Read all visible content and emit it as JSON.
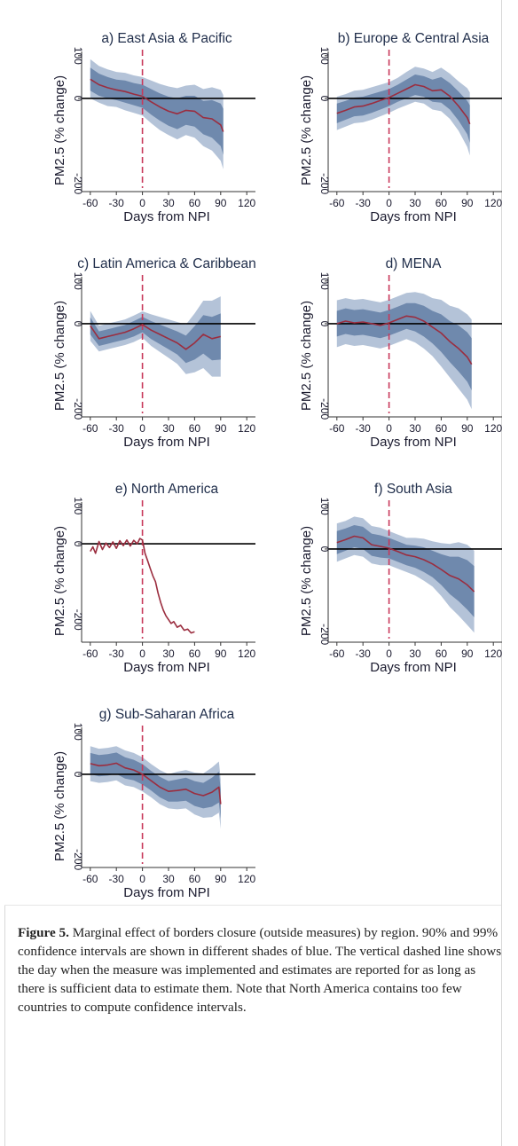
{
  "caption": {
    "label": "Figure 5.",
    "text": " Marginal effect of borders closure (outside measures) by region. 90% and 99% confidence intervals are shown in different shades of blue. The vertical dashed line shows the day when the measure was implemented and estimates are reported for as long as there is sufficient data to estimate them. Note that North America contains too few countries to compute confidence intervals."
  },
  "colors": {
    "ci_outer": "#b4c3d8",
    "ci_inner": "#6f89ad",
    "estimate_line": "#9b2d3f",
    "npi_line": "#c8385a",
    "zero_line": "#000000",
    "axis": "#333333"
  },
  "chart_data": [
    {
      "id": "a",
      "type": "line",
      "title": "a) East Asia & Pacific",
      "xlabel": "Days from NPI",
      "ylabel": "PM2.5 (% change)",
      "xlim": [
        -70,
        130
      ],
      "ylim": [
        -210,
        110
      ],
      "xticks": [
        -60,
        -30,
        0,
        30,
        60,
        90,
        120
      ],
      "yticks": [
        -200,
        0,
        100
      ],
      "grid": false,
      "ci": true,
      "x": [
        -60,
        -50,
        -40,
        -30,
        -20,
        -10,
        0,
        10,
        20,
        30,
        40,
        50,
        60,
        70,
        80,
        90,
        93
      ],
      "y": [
        45,
        32,
        25,
        20,
        16,
        10,
        5,
        -8,
        -20,
        -30,
        -36,
        -28,
        -30,
        -45,
        -48,
        -62,
        -78
      ],
      "ci90_lo": [
        18,
        6,
        0,
        -4,
        -10,
        -16,
        -22,
        -38,
        -52,
        -64,
        -72,
        -62,
        -66,
        -84,
        -92,
        -112,
        -132
      ],
      "ci90_hi": [
        72,
        58,
        50,
        44,
        42,
        36,
        32,
        22,
        12,
        4,
        0,
        6,
        6,
        -6,
        -4,
        -12,
        -24
      ],
      "ci99_lo": [
        0,
        -10,
        -18,
        -20,
        -28,
        -34,
        -40,
        -58,
        -74,
        -86,
        -96,
        -86,
        -92,
        -112,
        -122,
        -146,
        -166
      ],
      "ci99_hi": [
        92,
        76,
        68,
        62,
        60,
        54,
        50,
        42,
        34,
        28,
        24,
        30,
        32,
        22,
        26,
        20,
        8
      ]
    },
    {
      "id": "b",
      "type": "line",
      "title": "b) Europe & Central Asia",
      "xlabel": "Days from NPI",
      "ylabel": "PM2.5 (% change)",
      "xlim": [
        -70,
        130
      ],
      "ylim": [
        -210,
        110
      ],
      "xticks": [
        -60,
        -30,
        0,
        30,
        60,
        90,
        120
      ],
      "yticks": [
        -200,
        0,
        100
      ],
      "grid": false,
      "ci": true,
      "x": [
        -60,
        -50,
        -40,
        -30,
        -20,
        -10,
        0,
        10,
        20,
        30,
        40,
        50,
        60,
        70,
        80,
        90,
        93
      ],
      "y": [
        -35,
        -28,
        -20,
        -18,
        -12,
        -5,
        2,
        12,
        22,
        32,
        28,
        18,
        20,
        5,
        -18,
        -45,
        -60
      ],
      "ci90_lo": [
        -58,
        -50,
        -42,
        -40,
        -34,
        -26,
        -18,
        -8,
        0,
        8,
        4,
        -8,
        -10,
        -26,
        -52,
        -84,
        -104
      ],
      "ci90_hi": [
        -12,
        -6,
        2,
        4,
        10,
        16,
        22,
        32,
        44,
        56,
        52,
        44,
        50,
        36,
        16,
        -6,
        -16
      ],
      "ci99_lo": [
        -74,
        -66,
        -58,
        -56,
        -50,
        -42,
        -34,
        -24,
        -16,
        -8,
        -12,
        -26,
        -30,
        -48,
        -76,
        -114,
        -134
      ],
      "ci99_hi": [
        4,
        10,
        18,
        20,
        26,
        32,
        38,
        48,
        62,
        74,
        70,
        62,
        72,
        58,
        40,
        24,
        14
      ]
    },
    {
      "id": "c",
      "type": "line",
      "title": "c) Latin America & Caribbean",
      "xlabel": "Days from NPI",
      "ylabel": "PM2.5 (% change)",
      "xlim": [
        -70,
        130
      ],
      "ylim": [
        -210,
        110
      ],
      "xticks": [
        -60,
        -30,
        0,
        30,
        60,
        90,
        120
      ],
      "yticks": [
        -200,
        0,
        100
      ],
      "grid": false,
      "ci": true,
      "x": [
        -60,
        -50,
        -40,
        -30,
        -20,
        -10,
        0,
        10,
        20,
        30,
        40,
        50,
        60,
        70,
        80,
        90
      ],
      "y": [
        -5,
        -35,
        -30,
        -25,
        -20,
        -12,
        -2,
        -15,
        -25,
        -35,
        -45,
        -60,
        -45,
        -25,
        -35,
        -30
      ],
      "ci90_lo": [
        -25,
        -52,
        -47,
        -42,
        -37,
        -30,
        -20,
        -36,
        -48,
        -60,
        -72,
        -92,
        -84,
        -70,
        -86,
        -84
      ],
      "ci90_hi": [
        15,
        -18,
        -13,
        -8,
        -3,
        6,
        16,
        6,
        -2,
        -10,
        -18,
        -28,
        -6,
        20,
        16,
        24
      ],
      "ci99_lo": [
        -40,
        -65,
        -60,
        -55,
        -50,
        -43,
        -33,
        -52,
        -66,
        -80,
        -94,
        -118,
        -114,
        -104,
        -124,
        -124
      ],
      "ci99_hi": [
        30,
        -5,
        0,
        5,
        10,
        19,
        29,
        22,
        16,
        10,
        4,
        -2,
        24,
        54,
        54,
        64
      ]
    },
    {
      "id": "d",
      "type": "line",
      "title": "d) MENA",
      "xlabel": "Days from NPI",
      "ylabel": "PM2.5 (% change)",
      "xlim": [
        -70,
        130
      ],
      "ylim": [
        -210,
        110
      ],
      "xticks": [
        -60,
        -30,
        0,
        30,
        60,
        90,
        120
      ],
      "yticks": [
        -200,
        0,
        100
      ],
      "grid": false,
      "ci": true,
      "x": [
        -60,
        -50,
        -40,
        -30,
        -20,
        -10,
        0,
        10,
        20,
        30,
        40,
        50,
        60,
        70,
        80,
        90,
        95
      ],
      "y": [
        0,
        6,
        2,
        4,
        0,
        -4,
        2,
        10,
        18,
        15,
        6,
        -8,
        -22,
        -42,
        -58,
        -78,
        -95
      ],
      "ci90_lo": [
        -30,
        -24,
        -28,
        -26,
        -30,
        -34,
        -28,
        -20,
        -12,
        -18,
        -30,
        -46,
        -66,
        -90,
        -112,
        -136,
        -156
      ],
      "ci90_hi": [
        30,
        36,
        32,
        34,
        30,
        26,
        32,
        40,
        48,
        48,
        42,
        30,
        22,
        6,
        -4,
        -20,
        -34
      ],
      "ci99_lo": [
        -55,
        -48,
        -52,
        -50,
        -54,
        -58,
        -52,
        -44,
        -36,
        -44,
        -58,
        -76,
        -100,
        -126,
        -152,
        -178,
        -200
      ],
      "ci99_hi": [
        55,
        60,
        56,
        58,
        54,
        50,
        56,
        64,
        72,
        74,
        70,
        60,
        56,
        42,
        36,
        22,
        10
      ]
    },
    {
      "id": "e",
      "type": "line",
      "title": "e) North America",
      "xlabel": "Days from NPI",
      "ylabel": "PM2.5 (% change)",
      "xlim": [
        -70,
        130
      ],
      "ylim": [
        -250,
        110
      ],
      "xticks": [
        -60,
        -30,
        0,
        30,
        60,
        90,
        120
      ],
      "yticks": [
        -200,
        0,
        100
      ],
      "grid": false,
      "ci": false,
      "x": [
        -60,
        -57,
        -54,
        -50,
        -46,
        -42,
        -38,
        -34,
        -30,
        -26,
        -22,
        -18,
        -14,
        -10,
        -6,
        -3,
        0,
        3,
        6,
        9,
        12,
        15,
        18,
        21,
        24,
        27,
        30,
        33,
        36,
        40,
        44,
        48,
        52,
        56,
        60
      ],
      "y": [
        -20,
        -8,
        -25,
        6,
        -15,
        2,
        -10,
        5,
        -12,
        8,
        -5,
        10,
        -6,
        9,
        0,
        14,
        10,
        -25,
        -45,
        -65,
        -85,
        -100,
        -130,
        -155,
        -175,
        -190,
        -200,
        -210,
        -205,
        -220,
        -215,
        -228,
        -225,
        -235,
        -232
      ]
    },
    {
      "id": "f",
      "type": "line",
      "title": "f) South Asia",
      "xlabel": "Days from NPI",
      "ylabel": "PM2.5 (% change)",
      "xlim": [
        -70,
        130
      ],
      "ylim": [
        -210,
        110
      ],
      "xticks": [
        -60,
        -30,
        0,
        30,
        60,
        90,
        120
      ],
      "yticks": [
        -200,
        0,
        100
      ],
      "grid": false,
      "ci": true,
      "x": [
        -60,
        -50,
        -40,
        -30,
        -20,
        -10,
        0,
        10,
        20,
        30,
        40,
        50,
        60,
        70,
        80,
        90,
        98
      ],
      "y": [
        15,
        22,
        30,
        26,
        10,
        6,
        2,
        -6,
        -14,
        -18,
        -25,
        -35,
        -48,
        -62,
        -70,
        -84,
        -100
      ],
      "ci90_lo": [
        -12,
        -4,
        4,
        0,
        -16,
        -20,
        -22,
        -30,
        -38,
        -44,
        -54,
        -66,
        -84,
        -106,
        -122,
        -142,
        -160
      ],
      "ci90_hi": [
        42,
        48,
        56,
        52,
        36,
        32,
        26,
        18,
        10,
        8,
        4,
        -4,
        -12,
        -18,
        -18,
        -26,
        -40
      ],
      "ci99_lo": [
        -30,
        -22,
        -14,
        -18,
        -34,
        -38,
        -38,
        -46,
        -54,
        -62,
        -74,
        -88,
        -110,
        -136,
        -156,
        -178,
        -196
      ],
      "ci99_hi": [
        60,
        66,
        76,
        72,
        54,
        50,
        42,
        34,
        26,
        26,
        24,
        18,
        14,
        12,
        16,
        10,
        -4
      ]
    },
    {
      "id": "g",
      "type": "line",
      "title": "g) Sub-Saharan Africa",
      "xlabel": "Days from NPI",
      "ylabel": "PM2.5 (% change)",
      "xlim": [
        -70,
        130
      ],
      "ylim": [
        -210,
        110
      ],
      "xticks": [
        -60,
        -30,
        0,
        30,
        60,
        90,
        120
      ],
      "yticks": [
        -200,
        0,
        100
      ],
      "grid": false,
      "ci": true,
      "x": [
        -60,
        -50,
        -40,
        -30,
        -20,
        -10,
        0,
        10,
        20,
        30,
        40,
        50,
        60,
        70,
        80,
        88,
        90
      ],
      "y": [
        25,
        20,
        22,
        26,
        15,
        10,
        0,
        -15,
        -30,
        -40,
        -38,
        -35,
        -45,
        -50,
        -42,
        -30,
        -70
      ],
      "ci90_lo": [
        0,
        -5,
        -3,
        1,
        -10,
        -14,
        -24,
        -38,
        -54,
        -64,
        -64,
        -62,
        -74,
        -80,
        -76,
        -66,
        -104
      ],
      "ci90_hi": [
        50,
        45,
        47,
        51,
        40,
        34,
        24,
        8,
        -6,
        -16,
        -12,
        -8,
        -16,
        -20,
        -8,
        6,
        -36
      ],
      "ci99_lo": [
        -16,
        -20,
        -18,
        -14,
        -26,
        -30,
        -40,
        -54,
        -70,
        -80,
        -82,
        -80,
        -94,
        -102,
        -100,
        -90,
        -128
      ],
      "ci99_hi": [
        66,
        60,
        62,
        66,
        56,
        50,
        40,
        24,
        10,
        0,
        6,
        10,
        4,
        2,
        16,
        30,
        -12
      ]
    }
  ]
}
